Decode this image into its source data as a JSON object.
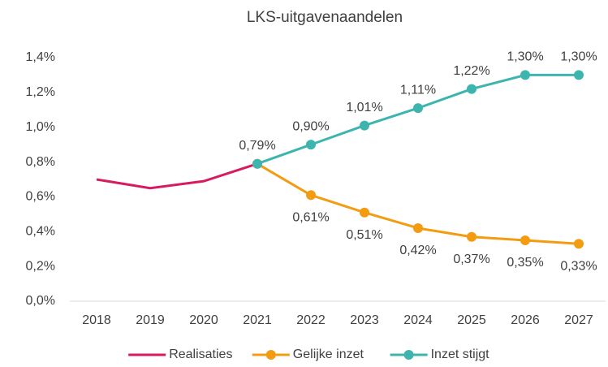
{
  "chart_data": {
    "type": "line",
    "title": "LKS-uitgavenaandelen",
    "categories": [
      "2018",
      "2019",
      "2020",
      "2021",
      "2022",
      "2023",
      "2024",
      "2025",
      "2026",
      "2027"
    ],
    "series": [
      {
        "name": "Realisaties",
        "color": "#d81b60",
        "markers": false,
        "values": [
          0.7,
          0.65,
          0.69,
          0.79,
          null,
          null,
          null,
          null,
          null,
          null
        ]
      },
      {
        "name": "Gelijke inzet",
        "color": "#f39c12",
        "markers": true,
        "label_position": "below",
        "values": [
          null,
          null,
          null,
          0.79,
          0.61,
          0.51,
          0.42,
          0.37,
          0.35,
          0.33
        ],
        "value_labels": [
          null,
          null,
          null,
          null,
          "0,61%",
          "0,51%",
          "0,42%",
          "0,37%",
          "0,35%",
          "0,33%"
        ]
      },
      {
        "name": "Inzet stijgt",
        "color": "#3db5ae",
        "markers": true,
        "label_position": "above",
        "values": [
          null,
          null,
          null,
          0.79,
          0.9,
          1.01,
          1.11,
          1.22,
          1.3,
          1.3
        ],
        "value_labels": [
          null,
          null,
          null,
          "0,79%",
          "0,90%",
          "1,01%",
          "1,11%",
          "1,22%",
          "1,30%",
          "1,30%"
        ]
      }
    ],
    "ylim": [
      0,
      1.4
    ],
    "yticks": [
      {
        "value": 0,
        "label": "0,0%"
      },
      {
        "value": 0.2,
        "label": "0,2%"
      },
      {
        "value": 0.4,
        "label": "0,4%"
      },
      {
        "value": 0.6,
        "label": "0,6%"
      },
      {
        "value": 0.8,
        "label": "0,8%"
      },
      {
        "value": 1.0,
        "label": "1,0%"
      },
      {
        "value": 1.2,
        "label": "1,2%"
      },
      {
        "value": 1.4,
        "label": "1,4%"
      }
    ],
    "grid": false,
    "legend": "bottom"
  }
}
